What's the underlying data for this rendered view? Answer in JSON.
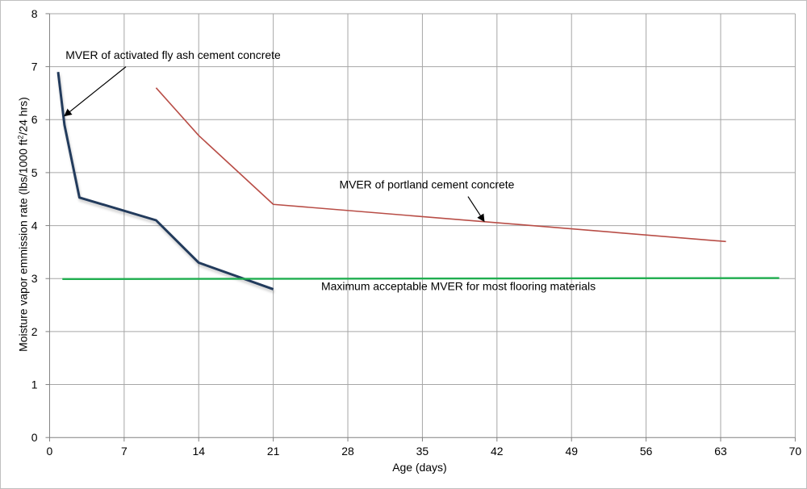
{
  "chart_data": {
    "type": "line",
    "xlabel": "Age (days)",
    "ylabel_parts": [
      "Moisture vapor emmission rate (lbs/1000 ft",
      "2",
      "/24 hrs)"
    ],
    "xlim": [
      0,
      70
    ],
    "ylim": [
      0,
      8
    ],
    "xticks": [
      0,
      7,
      14,
      21,
      28,
      35,
      42,
      49,
      56,
      63,
      70
    ],
    "yticks": [
      0,
      1,
      2,
      3,
      4,
      5,
      6,
      7,
      8
    ],
    "grid": true,
    "legend": "none",
    "series": [
      {
        "color": "#243a5c",
        "points": [
          [
            0.8,
            6.9
          ],
          [
            1.4,
            5.9
          ],
          [
            2.8,
            4.53
          ],
          [
            10,
            4.1
          ],
          [
            14,
            3.3
          ],
          [
            21,
            2.8
          ]
        ]
      },
      {
        "color": "#b84d46",
        "points": [
          [
            10,
            6.6
          ],
          [
            14,
            5.7
          ],
          [
            21,
            4.4
          ],
          [
            63.5,
            3.7
          ]
        ]
      },
      {
        "color": "#1fae4f",
        "points": [
          [
            1.2,
            2.99
          ],
          [
            68.5,
            3.01
          ]
        ]
      }
    ],
    "annotations": [
      {
        "text": "MVER of activated fly ash cement concrete",
        "x": 1.5,
        "y": 7.15,
        "arrow_to": [
          1.4,
          6.07
        ]
      },
      {
        "text": "MVER of portland cement concrete",
        "x": 27.2,
        "y": 4.7,
        "arrow_to": [
          40.8,
          4.08
        ]
      },
      {
        "text": "Maximum acceptable MVER for most flooring materials",
        "x": 25.5,
        "y": 2.78,
        "arrow_to": null
      }
    ]
  }
}
